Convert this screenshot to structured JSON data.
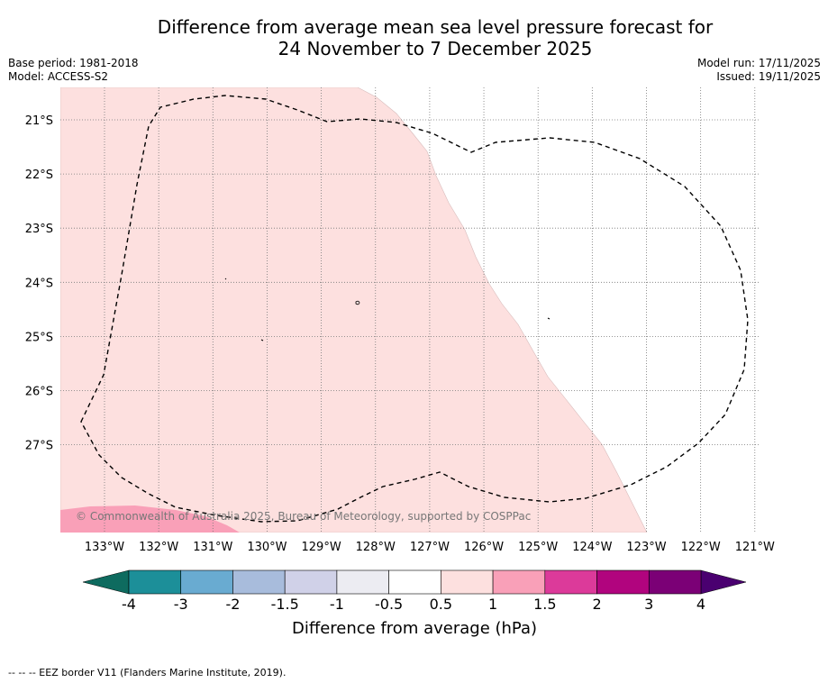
{
  "header": {
    "title_line1": "Difference from average mean sea level pressure forecast for",
    "title_line2": "24 November to 7 December 2025",
    "base_period": "Base period: 1981-2018",
    "model": "Model: ACCESS-S2",
    "model_run": "Model run: 17/11/2025",
    "issued": "Issued: 19/11/2025"
  },
  "map": {
    "lon_labels": [
      "133°W",
      "132°W",
      "131°W",
      "130°W",
      "129°W",
      "128°W",
      "127°W",
      "126°W",
      "125°W",
      "124°W",
      "123°W",
      "122°W",
      "121°W"
    ],
    "lat_labels": [
      "21°S",
      "22°S",
      "23°S",
      "24°S",
      "25°S",
      "26°S",
      "27°S"
    ],
    "copyright": "© Commonwealth of Australia 2025, Bureau of Meteorology, supported by COSPPac",
    "shading_colors": {
      "band_0_5_to_1": "#fde0df",
      "band_1_to_1_5": "#f9a0b8"
    }
  },
  "legend": {
    "labels": [
      "-4",
      "-3",
      "-2",
      "-1.5",
      "-1",
      "-0.5",
      "0.5",
      "1",
      "1.5",
      "2",
      "3",
      "4"
    ],
    "colors": [
      "#1c8f99",
      "#69abd1",
      "#a8bcdc",
      "#d0d1e8",
      "#ececf2",
      "#ffffff",
      "#fde0df",
      "#f9a0b8",
      "#dc3a9a",
      "#b1047e",
      "#7b0076"
    ],
    "under_color": "#0e6b5f",
    "over_color": "#4a0070",
    "title": "Difference from average (hPa)"
  },
  "footer": {
    "eez_note": "--  --  -- EEZ border V11 (Flanders Marine Institute, 2019)."
  }
}
